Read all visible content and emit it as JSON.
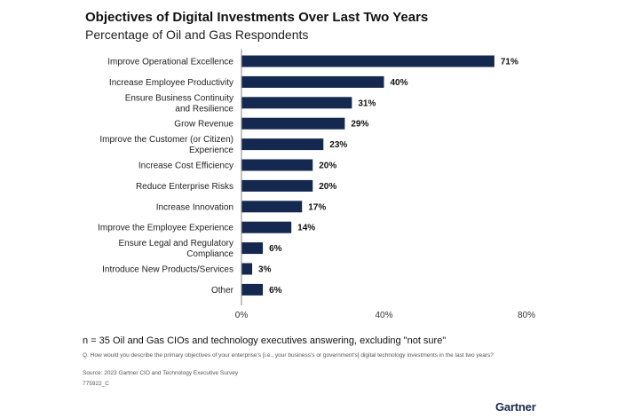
{
  "chart_data": {
    "type": "bar",
    "orientation": "horizontal",
    "title": "Objectives of Digital Investments Over Last Two Years",
    "subtitle": "Percentage of Oil and Gas Respondents",
    "categories": [
      [
        "Improve Operational Excellence"
      ],
      [
        "Increase Employee Productivity"
      ],
      [
        "Ensure Business Continuity",
        "and Resilience"
      ],
      [
        "Grow Revenue"
      ],
      [
        "Improve the Customer (or Citizen)",
        "Experience"
      ],
      [
        "Increase Cost Efficiency"
      ],
      [
        "Reduce Enterprise Risks"
      ],
      [
        "Increase Innovation"
      ],
      [
        "Improve the Employee Experience"
      ],
      [
        "Ensure Legal and Regulatory",
        "Compliance"
      ],
      [
        "Introduce New Products/Services"
      ],
      [
        "Other"
      ]
    ],
    "values": [
      71,
      40,
      31,
      29,
      23,
      20,
      20,
      17,
      14,
      6,
      3,
      6
    ],
    "value_labels": [
      "71%",
      "40%",
      "31%",
      "29%",
      "23%",
      "20%",
      "20%",
      "17%",
      "14%",
      "6%",
      "3%",
      "6%"
    ],
    "xlim": [
      0,
      80
    ],
    "xticks": [
      0,
      40,
      80
    ],
    "xtick_labels": [
      "0%",
      "40%",
      "80%"
    ],
    "bar_color": "#142850",
    "grid": false
  },
  "footer": {
    "note": "n = 35 Oil and Gas CIOs and technology executives answering, excluding \"not sure\"",
    "question": "Q. How would you describe the primary objectives of your enterprise's [i.e., your business's or government's] digital technology investments in the last two years?",
    "source": "Source: 2023 Gartner CIO and Technology Executive Survey",
    "code": "775922_C",
    "logo": "Gartner"
  }
}
